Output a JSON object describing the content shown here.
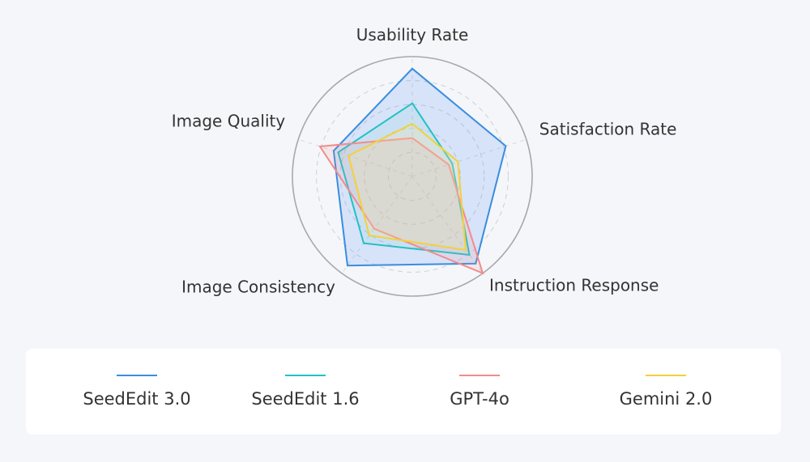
{
  "chart_data": {
    "type": "radar",
    "axes": [
      "Usability Rate",
      "Satisfaction Rate",
      "Instruction Response",
      "Image Consistency",
      "Image Quality"
    ],
    "range": [
      0,
      1
    ],
    "grid": true,
    "legend_position": "bottom",
    "series": [
      {
        "name": "SeedEdit 3.0",
        "color": "#3a8dde",
        "fill": "rgba(66,133,244,0.16)",
        "values": [
          0.9,
          0.82,
          0.9,
          0.92,
          0.69
        ]
      },
      {
        "name": "SeedEdit 1.6",
        "color": "#22c1c3",
        "fill": "rgba(34,193,195,0.08)",
        "values": [
          0.61,
          0.35,
          0.81,
          0.69,
          0.65
        ]
      },
      {
        "name": "GPT-4o",
        "color": "#f28b8b",
        "fill": "rgba(242,139,139,0.14)",
        "values": [
          0.32,
          0.32,
          1.0,
          0.54,
          0.81
        ]
      },
      {
        "name": "Gemini 2.0",
        "color": "#f2d13a",
        "fill": "rgba(250,228,150,0.25)",
        "values": [
          0.44,
          0.4,
          0.76,
          0.61,
          0.56
        ]
      }
    ]
  }
}
